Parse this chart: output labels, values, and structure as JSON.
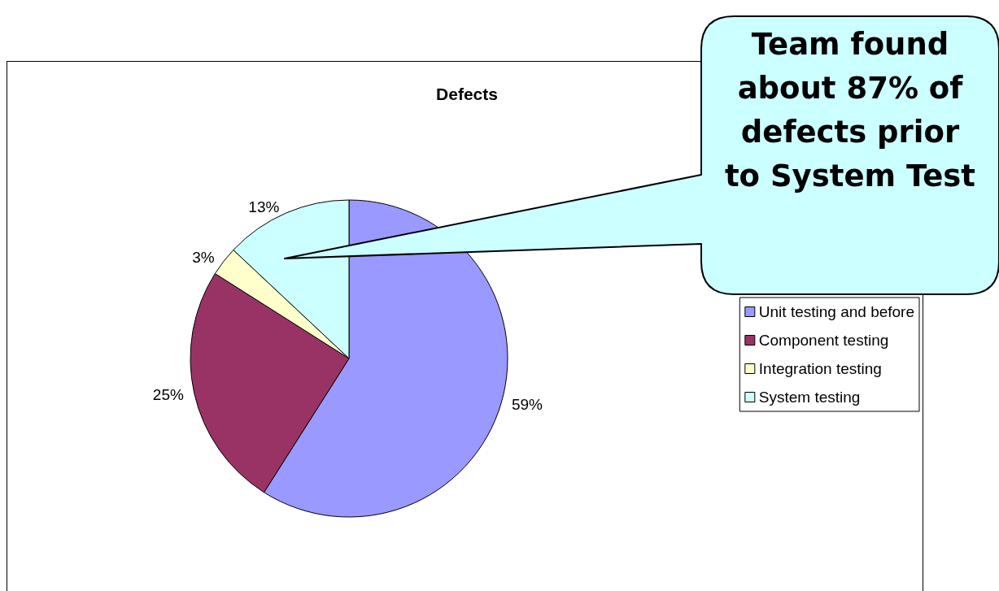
{
  "chart_data": {
    "type": "pie",
    "title": "Defects",
    "categories": [
      "Unit testing and before",
      "Component testing",
      "Integration testing",
      "System testing"
    ],
    "values": [
      59,
      25,
      3,
      13
    ],
    "colors": [
      "#9999ff",
      "#993366",
      "#ffffcc",
      "#ccffff"
    ],
    "value_labels": [
      "59%",
      "25%",
      "3%",
      "13%"
    ],
    "legend": "right",
    "annotations": [
      "Team found about 87% of defects prior to System Test"
    ]
  }
}
